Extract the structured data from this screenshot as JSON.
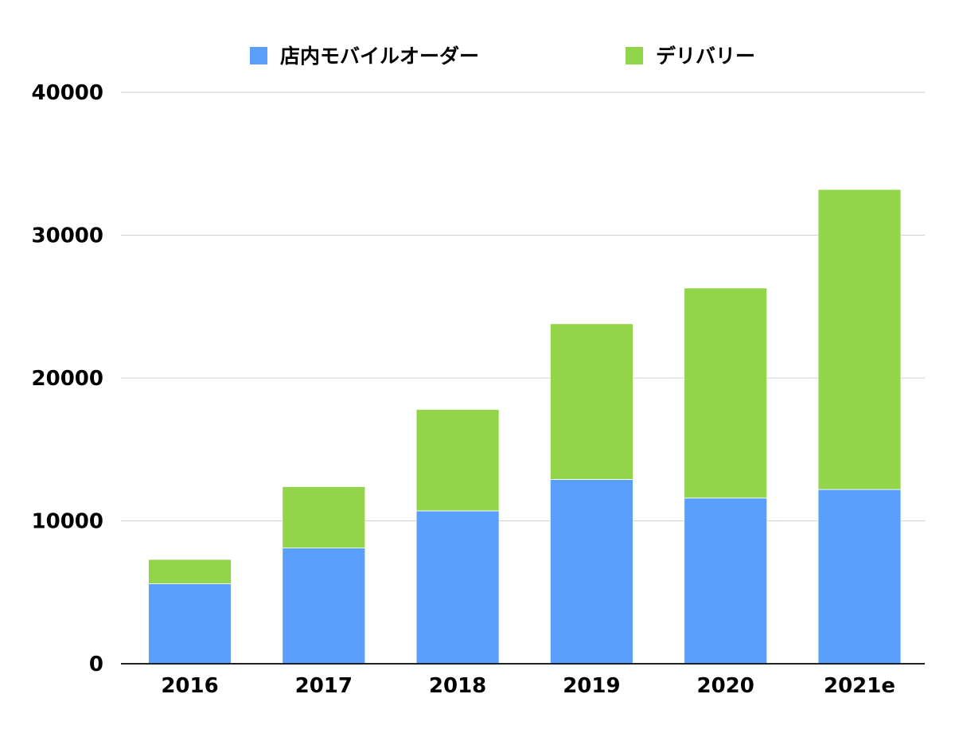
{
  "chart_data": {
    "type": "bar",
    "stacked": true,
    "categories": [
      "2016",
      "2017",
      "2018",
      "2019",
      "2020",
      "2021e"
    ],
    "series": [
      {
        "name": "店内モバイルオーダー",
        "color": "#5b9ffc",
        "values": [
          5600,
          8100,
          10700,
          12900,
          11600,
          12200
        ]
      },
      {
        "name": "デリバリー",
        "color": "#92d54b",
        "values": [
          1700,
          4300,
          7100,
          10900,
          14700,
          21000
        ]
      }
    ],
    "ylim": [
      0,
      40000
    ],
    "yticks": [
      "0",
      "10000",
      "20000",
      "30000",
      "40000"
    ],
    "grid": true,
    "legend_position": "top"
  }
}
